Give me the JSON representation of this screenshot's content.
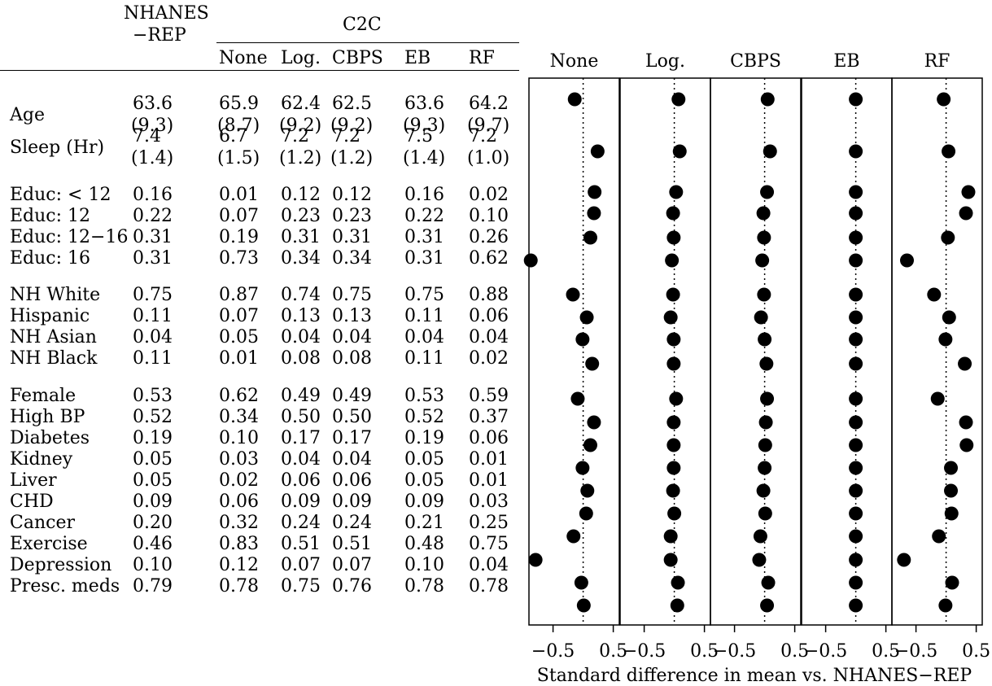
{
  "table": {
    "header": {
      "nhanes_line1": "NHANES",
      "nhanes_line2": "−REP",
      "group_label": "C2C",
      "columns": [
        "None",
        "Log.",
        "CBPS",
        "EB",
        "RF"
      ]
    },
    "rows": [
      {
        "label": "Age",
        "values": [
          "63.6",
          "65.9",
          "62.4",
          "62.5",
          "63.6",
          "64.2"
        ],
        "sd": [
          "(9.3)",
          "(8.7)",
          "(9.2)",
          "(9.2)",
          "(9.3)",
          "(9.7)"
        ]
      },
      {
        "label": "Sleep (Hr)",
        "values": [
          "7.4",
          "6.7",
          "7.2",
          "7.2",
          "7.5",
          "7.2"
        ],
        "sd": [
          "(1.4)",
          "(1.5)",
          "(1.2)",
          "(1.2)",
          "(1.4)",
          "(1.0)"
        ]
      },
      {
        "label": "Educ: < 12",
        "values": [
          "0.16",
          "0.01",
          "0.12",
          "0.12",
          "0.16",
          "0.02"
        ]
      },
      {
        "label": "Educ: 12",
        "values": [
          "0.22",
          "0.07",
          "0.23",
          "0.23",
          "0.22",
          "0.10"
        ]
      },
      {
        "label": "Educ: 12−16",
        "values": [
          "0.31",
          "0.19",
          "0.31",
          "0.31",
          "0.31",
          "0.26"
        ]
      },
      {
        "label": "Educ: 16",
        "values": [
          "0.31",
          "0.73",
          "0.34",
          "0.34",
          "0.31",
          "0.62"
        ]
      },
      {
        "label": "NH White",
        "values": [
          "0.75",
          "0.87",
          "0.74",
          "0.75",
          "0.75",
          "0.88"
        ]
      },
      {
        "label": "Hispanic",
        "values": [
          "0.11",
          "0.07",
          "0.13",
          "0.13",
          "0.11",
          "0.06"
        ]
      },
      {
        "label": "NH Asian",
        "values": [
          "0.04",
          "0.05",
          "0.04",
          "0.04",
          "0.04",
          "0.04"
        ]
      },
      {
        "label": "NH Black",
        "values": [
          "0.11",
          "0.01",
          "0.08",
          "0.08",
          "0.11",
          "0.02"
        ]
      },
      {
        "label": "Female",
        "values": [
          "0.53",
          "0.62",
          "0.49",
          "0.49",
          "0.53",
          "0.59"
        ]
      },
      {
        "label": "High BP",
        "values": [
          "0.52",
          "0.34",
          "0.50",
          "0.50",
          "0.52",
          "0.37"
        ]
      },
      {
        "label": "Diabetes",
        "values": [
          "0.19",
          "0.10",
          "0.17",
          "0.17",
          "0.19",
          "0.06"
        ]
      },
      {
        "label": "Kidney",
        "values": [
          "0.05",
          "0.03",
          "0.04",
          "0.04",
          "0.05",
          "0.01"
        ]
      },
      {
        "label": "Liver",
        "values": [
          "0.05",
          "0.02",
          "0.06",
          "0.06",
          "0.05",
          "0.01"
        ]
      },
      {
        "label": "CHD",
        "values": [
          "0.09",
          "0.06",
          "0.09",
          "0.09",
          "0.09",
          "0.03"
        ]
      },
      {
        "label": "Cancer",
        "values": [
          "0.20",
          "0.32",
          "0.24",
          "0.24",
          "0.21",
          "0.25"
        ]
      },
      {
        "label": "Exercise",
        "values": [
          "0.46",
          "0.83",
          "0.51",
          "0.51",
          "0.48",
          "0.75"
        ]
      },
      {
        "label": "Depression",
        "values": [
          "0.10",
          "0.12",
          "0.07",
          "0.07",
          "0.10",
          "0.04"
        ]
      },
      {
        "label": "Presc. meds",
        "values": [
          "0.79",
          "0.78",
          "0.75",
          "0.76",
          "0.78",
          "0.78"
        ]
      }
    ]
  },
  "chart_data": {
    "type": "scatter",
    "panels": [
      "None",
      "Log.",
      "CBPS",
      "EB",
      "RF"
    ],
    "xlabel": "Standard difference in mean vs. NHANES−REP",
    "xlim": [
      -0.9,
      0.6
    ],
    "xticks": [
      -0.5,
      0.5
    ],
    "xtick_labels": [
      "−0.5",
      "0.5"
    ],
    "reference_line": 0,
    "categories": [
      "Age",
      "Sleep (Hr)",
      "Educ: < 12",
      "Educ: 12",
      "Educ: 12−16",
      "Educ: 16",
      "NH White",
      "Hispanic",
      "NH Asian",
      "NH Black",
      "Female",
      "High BP",
      "Diabetes",
      "Kidney",
      "Liver",
      "CHD",
      "Cancer",
      "Exercise",
      "Depression",
      "Presc. meds"
    ],
    "series": [
      {
        "name": "None",
        "values": [
          -0.14,
          0.24,
          0.19,
          0.18,
          0.12,
          -0.87,
          -0.17,
          0.06,
          -0.01,
          0.15,
          -0.09,
          0.18,
          0.12,
          -0.01,
          0.07,
          0.05,
          -0.16,
          -0.79,
          -0.03,
          0.01
        ]
      },
      {
        "name": "Log.",
        "values": [
          0.07,
          0.09,
          0.03,
          -0.02,
          -0.01,
          -0.04,
          -0.02,
          -0.06,
          -0.01,
          -0.01,
          0.03,
          -0.01,
          -0.01,
          -0.01,
          -0.02,
          0.0,
          -0.06,
          -0.06,
          0.06,
          0.05
        ]
      },
      {
        "name": "CBPS",
        "values": [
          0.05,
          0.09,
          0.04,
          -0.02,
          -0.01,
          -0.04,
          -0.01,
          -0.06,
          0.0,
          0.03,
          0.04,
          0.02,
          0.01,
          0.0,
          -0.02,
          0.01,
          -0.07,
          -0.09,
          0.06,
          0.04
        ]
      },
      {
        "name": "EB",
        "values": [
          0.0,
          0.0,
          0.0,
          0.0,
          0.0,
          0.0,
          0.0,
          0.0,
          0.0,
          0.0,
          0.0,
          0.0,
          0.0,
          0.0,
          0.0,
          0.0,
          0.0,
          0.0,
          0.0,
          0.0
        ]
      },
      {
        "name": "RF",
        "values": [
          -0.04,
          0.04,
          0.37,
          0.33,
          0.03,
          -0.65,
          -0.2,
          0.05,
          -0.01,
          0.31,
          -0.14,
          0.33,
          0.34,
          0.08,
          0.08,
          0.09,
          -0.12,
          -0.7,
          0.1,
          -0.01
        ]
      }
    ]
  }
}
